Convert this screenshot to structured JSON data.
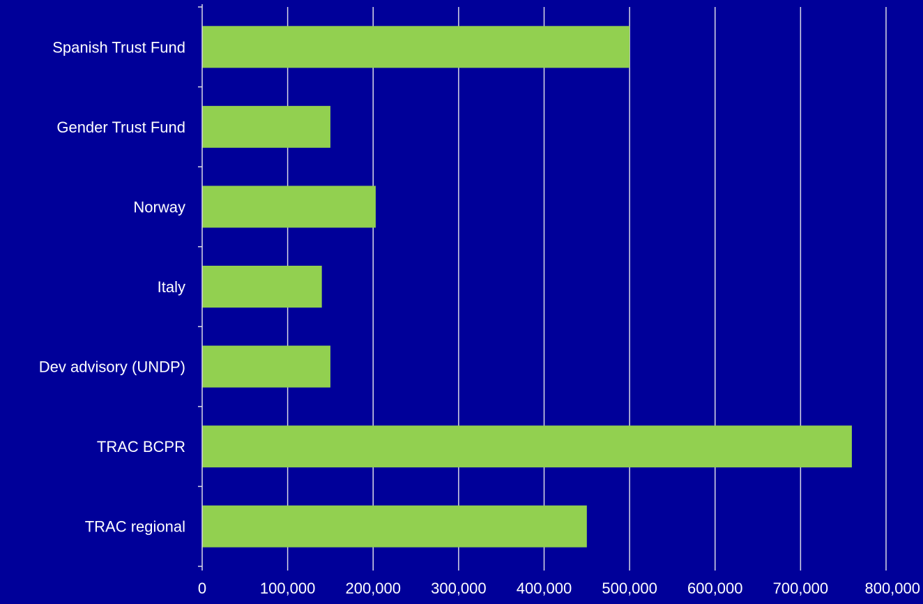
{
  "colors": {
    "background": "#000099",
    "bar": "#92d050",
    "grid": "#d9d9e6",
    "text": "#ffffff"
  },
  "chart_data": {
    "type": "bar",
    "orientation": "horizontal",
    "categories": [
      "Spanish Trust Fund",
      "Gender Trust Fund",
      "Norway",
      "Italy",
      "Dev advisory (UNDP)",
      "TRAC BCPR",
      "TRAC regional"
    ],
    "values": [
      500000,
      150000,
      203000,
      140000,
      150000,
      760000,
      450000
    ],
    "xlim": [
      0,
      800000
    ],
    "x_ticks": [
      0,
      100000,
      200000,
      300000,
      400000,
      500000,
      600000,
      700000,
      800000
    ],
    "x_tick_labels": [
      "0",
      "100,000",
      "200,000",
      "300,000",
      "400,000",
      "500,000",
      "600,000",
      "700,000",
      "800,000"
    ],
    "grid": true,
    "legend": "none"
  }
}
